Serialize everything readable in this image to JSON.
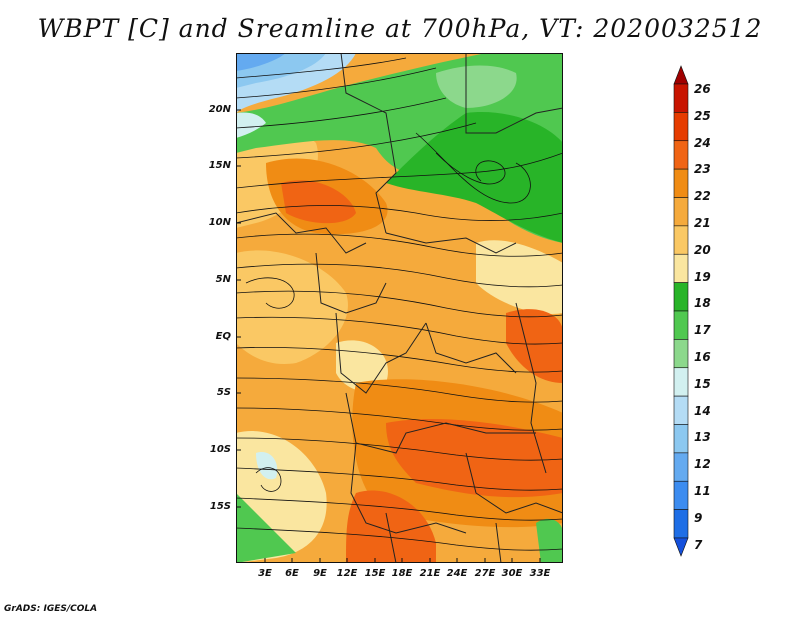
{
  "title": "WBPT [C] and Sreamline at 700hPa, VT: 2020032512",
  "credit": "GrADS: IGES/COLA",
  "map": {
    "lat_labels": [
      "20N",
      "15N",
      "10N",
      "5N",
      "EQ",
      "5S",
      "10S",
      "15S"
    ],
    "lon_labels": [
      "3E",
      "6E",
      "9E",
      "12E",
      "15E",
      "18E",
      "21E",
      "24E",
      "27E",
      "30E",
      "33E"
    ]
  },
  "colorbar": {
    "labels": [
      "26",
      "25",
      "24",
      "23",
      "22",
      "21",
      "20",
      "19",
      "18",
      "17",
      "16",
      "15",
      "14",
      "13",
      "12",
      "11",
      "9",
      "7"
    ],
    "colors": [
      "#a00000",
      "#c81400",
      "#e63c00",
      "#f06414",
      "#f08c14",
      "#f5aa3c",
      "#fac864",
      "#fae6a0",
      "#28b428",
      "#50c850",
      "#8cd88c",
      "#d2f0f0",
      "#b4dcf5",
      "#8cc8f0",
      "#64aaf0",
      "#3c8cf0",
      "#1e6ee6",
      "#1450dc"
    ]
  },
  "colors": {
    "warm_fill": "#f5aa3c",
    "hot_fill": "#f06414",
    "green_fill": "#50c850",
    "cool_fill": "#8cc8f0"
  }
}
